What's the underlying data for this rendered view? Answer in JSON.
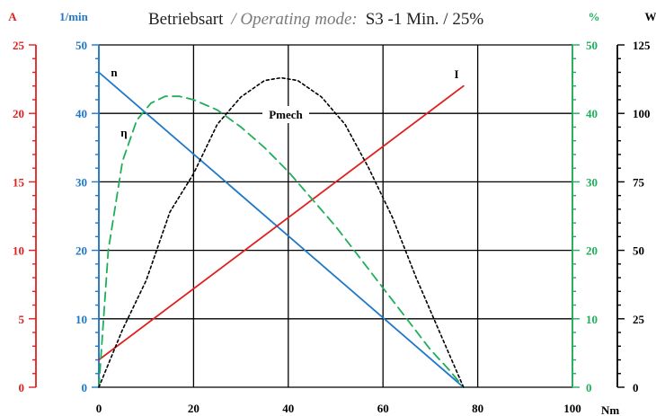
{
  "chart_data": {
    "type": "line",
    "title_main": "Betriebsart",
    "title_operating": "/ Operating mode:",
    "title_value": "S3 -1 Min. / 25%",
    "xlabel": "Nm",
    "xlim": [
      0,
      100
    ],
    "x_ticks": [
      "0",
      "20",
      "40",
      "60",
      "80",
      "100"
    ],
    "axes": {
      "current": {
        "unit": "A",
        "range": [
          0,
          25
        ],
        "ticks": [
          "0",
          "5",
          "10",
          "15",
          "20",
          "25"
        ],
        "color": "#e02020"
      },
      "speed": {
        "unit": "1/min",
        "range": [
          0,
          50
        ],
        "ticks": [
          "0",
          "10",
          "20",
          "30",
          "40",
          "50"
        ],
        "color": "#1f78c8"
      },
      "efficiency": {
        "unit": "%",
        "range": [
          0,
          50
        ],
        "ticks": [
          "0",
          "10",
          "20",
          "30",
          "40",
          "50"
        ],
        "color": "#1fae5a"
      },
      "power": {
        "unit": "W",
        "range": [
          0,
          125
        ],
        "ticks": [
          "0",
          "25",
          "50",
          "75",
          "100",
          "125"
        ],
        "color": "#000000"
      }
    },
    "grid": true,
    "series": [
      {
        "name": "n",
        "axis": "speed",
        "color": "#1f78c8",
        "style": "solid",
        "x": [
          0,
          77
        ],
        "y": [
          46,
          0
        ]
      },
      {
        "name": "I",
        "axis": "current",
        "color": "#e02020",
        "style": "solid",
        "x": [
          0,
          77
        ],
        "y": [
          2,
          22
        ]
      },
      {
        "name": "η",
        "axis": "efficiency",
        "color": "#1fae5a",
        "style": "dashed",
        "x": [
          0,
          2,
          5,
          8,
          11,
          14,
          17,
          20,
          25,
          30,
          35,
          40,
          45,
          50,
          55,
          60,
          65,
          70,
          74,
          77
        ],
        "y": [
          0,
          20,
          33,
          39,
          41.5,
          42.5,
          42.5,
          42,
          40.5,
          38,
          35,
          31.5,
          27.5,
          23.5,
          19,
          14.5,
          10,
          5.5,
          2.5,
          0
        ]
      },
      {
        "name": "Pmech",
        "axis": "power",
        "color": "#000000",
        "style": "dotted",
        "x": [
          0,
          5,
          10,
          15,
          20,
          25,
          30,
          35,
          38.5,
          42,
          47,
          52,
          57,
          62,
          67,
          72,
          77
        ],
        "y": [
          0,
          21,
          39,
          64,
          78,
          96,
          106,
          112,
          113,
          112,
          106,
          96,
          80,
          62,
          40,
          20,
          0
        ]
      }
    ]
  }
}
